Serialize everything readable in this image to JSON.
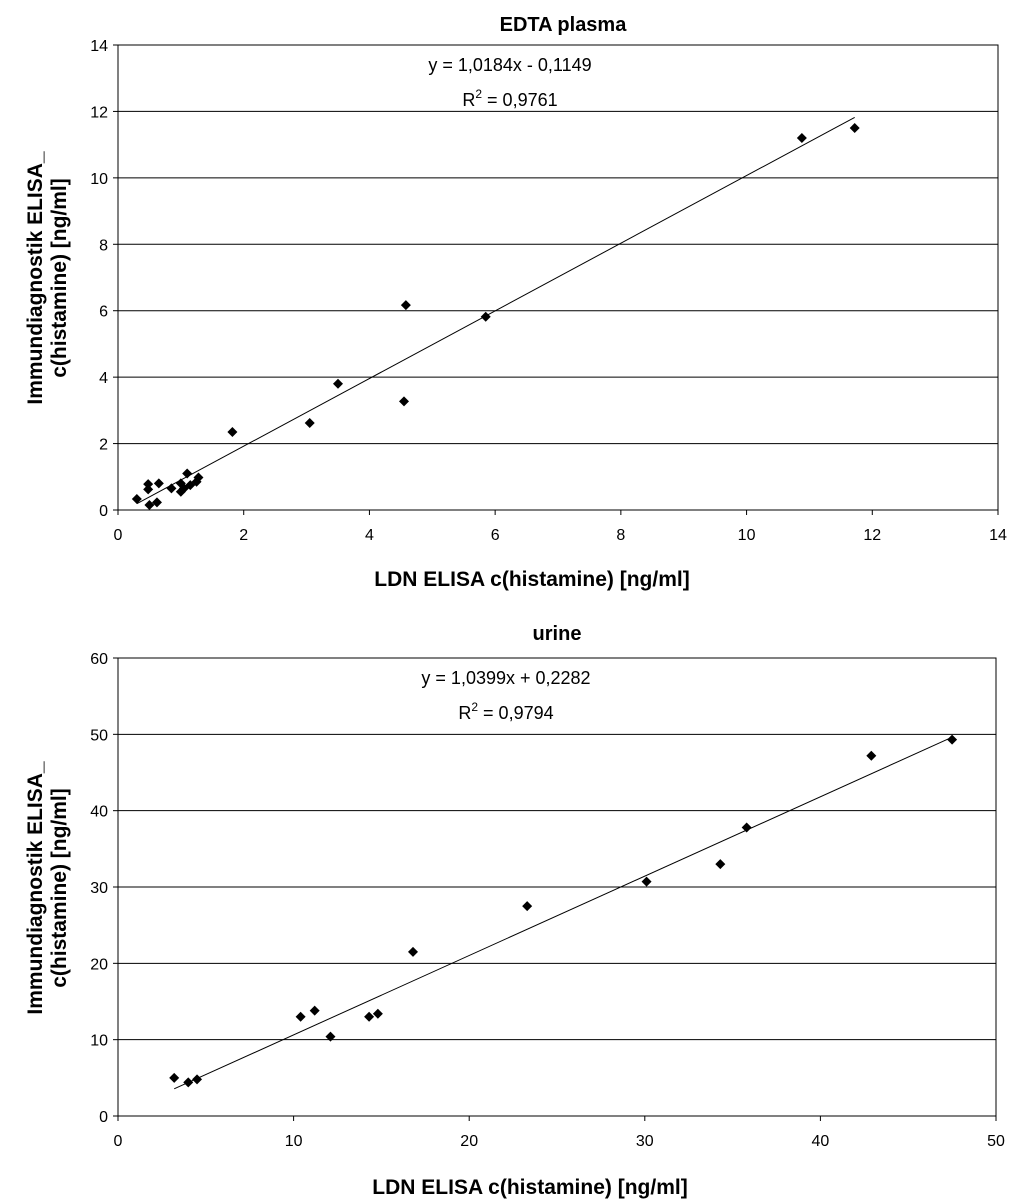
{
  "chart_data": [
    {
      "type": "scatter",
      "title": "EDTA plasma",
      "xlabel": "LDN ELISA c(histamine) [ng/ml]",
      "ylabel": [
        "Immundiagnostik ELISA_",
        "c(histamine) [ng/ml]"
      ],
      "xlim": [
        0,
        14
      ],
      "ylim": [
        0,
        14
      ],
      "xticks": [
        "0",
        "2",
        "4",
        "6",
        "8",
        "10",
        "12",
        "14"
      ],
      "yticks": [
        "0",
        "2",
        "4",
        "6",
        "8",
        "10",
        "12",
        "14"
      ],
      "grid": "horizontal",
      "trendline": {
        "slope": 1.0184,
        "intercept": -0.1149,
        "equation": "y = 1,0184x - 0,1149",
        "r2_prefix": "R",
        "r2_sup": "2",
        "r2_value": " = 0,9761"
      },
      "points": [
        [
          0.3,
          0.33
        ],
        [
          0.48,
          0.78
        ],
        [
          0.48,
          0.62
        ],
        [
          0.5,
          0.15
        ],
        [
          0.62,
          0.23
        ],
        [
          0.65,
          0.8
        ],
        [
          0.85,
          0.65
        ],
        [
          1.0,
          0.55
        ],
        [
          1.0,
          0.8
        ],
        [
          1.05,
          0.65
        ],
        [
          1.1,
          1.1
        ],
        [
          1.15,
          0.75
        ],
        [
          1.25,
          0.85
        ],
        [
          1.28,
          0.98
        ],
        [
          1.82,
          2.35
        ],
        [
          3.05,
          2.62
        ],
        [
          3.5,
          3.8
        ],
        [
          4.55,
          3.27
        ],
        [
          4.58,
          6.17
        ],
        [
          5.85,
          5.82
        ],
        [
          10.88,
          11.2
        ],
        [
          11.72,
          11.5
        ]
      ]
    },
    {
      "type": "scatter",
      "title": "urine",
      "xlabel": "LDN ELISA c(histamine) [ng/ml]",
      "ylabel": [
        "Immundiagnostik ELISA_",
        "c(histamine) [ng/ml]"
      ],
      "xlim": [
        0,
        50
      ],
      "ylim": [
        0,
        60
      ],
      "xticks": [
        "0",
        "10",
        "20",
        "30",
        "40",
        "50"
      ],
      "yticks": [
        "0",
        "10",
        "20",
        "30",
        "40",
        "50",
        "60"
      ],
      "grid": "horizontal",
      "trendline": {
        "slope": 1.0399,
        "intercept": 0.2282,
        "equation": "y = 1,0399x + 0,2282",
        "r2_prefix": "R",
        "r2_sup": "2",
        "r2_value": " = 0,9794"
      },
      "points": [
        [
          3.2,
          5.0
        ],
        [
          4.0,
          4.4
        ],
        [
          4.5,
          4.8
        ],
        [
          10.4,
          13.0
        ],
        [
          11.2,
          13.8
        ],
        [
          12.1,
          10.4
        ],
        [
          14.3,
          13.0
        ],
        [
          14.8,
          13.4
        ],
        [
          16.8,
          21.5
        ],
        [
          23.3,
          27.5
        ],
        [
          30.1,
          30.7
        ],
        [
          34.3,
          33.0
        ],
        [
          35.8,
          37.8
        ],
        [
          42.9,
          47.2
        ],
        [
          47.5,
          49.3
        ]
      ]
    }
  ]
}
